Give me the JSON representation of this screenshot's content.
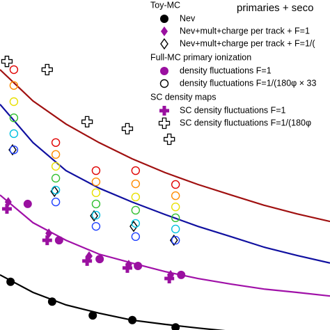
{
  "chart_data": {
    "type": "scatter",
    "title": "primaries + seco",
    "xlim": [
      0,
      100
    ],
    "ylim": [
      0,
      100
    ],
    "legend_groups": [
      {
        "title": "Toy-MC",
        "start": 0
      },
      {
        "title": "Full-MC primary ionization",
        "start": 3
      },
      {
        "title": "SC density maps",
        "start": 5
      }
    ],
    "series": [
      {
        "name": "Nev",
        "marker": "circle",
        "filled": true,
        "color": "#000000",
        "x": [
          3.2,
          15.8,
          28.1,
          40.1,
          53.2
        ],
        "values": [
          14.6,
          8.6,
          4.4,
          3.0,
          0.8
        ]
      },
      {
        "name": "Nev+mult+charge per track + F=1",
        "marker": "diamond",
        "filled": true,
        "color": "#9a10a0",
        "x": [
          2.5,
          14.8,
          27.0,
          39.0,
          51.7
        ],
        "values": [
          38.8,
          29.3,
          22.4,
          19.8,
          16.7
        ]
      },
      {
        "name": "Nev+mult+charge per track + F=1/(",
        "marker": "diamond",
        "filled": false,
        "color": "#000000",
        "x": [
          3.8,
          16.5,
          28.5,
          40.5,
          52.7
        ],
        "values": [
          54.6,
          42.0,
          34.6,
          31.4,
          27.2
        ]
      },
      {
        "name": "density fluctuations F=1",
        "marker": "circle",
        "filled": true,
        "color": "#9a10a0",
        "x": [
          8.4,
          17.9,
          30.2,
          41.8,
          54.9
        ],
        "values": [
          38.2,
          27.2,
          21.5,
          19.4,
          16.7
        ]
      },
      {
        "name": "density fluctuations F=1/(180φ × 33",
        "marker": "circle",
        "filled": false,
        "color": "#000000",
        "x": [
          4.2,
          4.2,
          4.2,
          4.2,
          4.2,
          4.2,
          16.9,
          16.9,
          16.9,
          16.9,
          16.9,
          16.9,
          29.1,
          29.1,
          29.1,
          29.1,
          29.1,
          29.1,
          41.1,
          41.1,
          41.1,
          41.1,
          41.1,
          41.1,
          53.2,
          53.2,
          53.2,
          53.2,
          53.2,
          53.2
        ],
        "values": [
          78.9,
          74.1,
          69.2,
          64.3,
          59.5,
          54.6,
          56.8,
          53.2,
          49.6,
          46.0,
          42.4,
          38.8,
          48.3,
          44.9,
          41.6,
          38.2,
          34.8,
          31.4,
          48.3,
          44.3,
          40.3,
          36.3,
          32.3,
          28.3,
          44.1,
          40.7,
          37.3,
          34.0,
          30.6,
          27.2
        ],
        "point_colors": [
          "#e00000",
          "#ff8c00",
          "#e8e000",
          "#30c030",
          "#00c0e0",
          "#2040ff"
        ]
      },
      {
        "name": "SC density fluctuations F=1",
        "marker": "plus",
        "filled": true,
        "color": "#9a10a0",
        "x": [
          2.1,
          14.3,
          26.4,
          38.6,
          51.3
        ],
        "values": [
          36.7,
          27.2,
          20.9,
          18.8,
          15.6
        ]
      },
      {
        "name": "SC density fluctuations F=1/(180φ",
        "marker": "plus",
        "filled": false,
        "color": "#000000",
        "x": [
          2.1,
          14.3,
          26.4,
          38.6,
          51.3
        ],
        "values": [
          81.4,
          78.9,
          63.1,
          61.0,
          57.8
        ]
      }
    ],
    "fits": [
      {
        "color": "#a01010",
        "x": [
          0,
          10,
          20,
          30,
          40,
          50,
          60,
          70,
          80,
          90,
          100
        ],
        "values": [
          78.9,
          69.4,
          62.4,
          56.8,
          51.9,
          47.7,
          44.1,
          40.9,
          37.8,
          35.2,
          32.9
        ]
      },
      {
        "color": "#1010a0",
        "x": [
          0,
          10,
          20,
          30,
          40,
          50,
          60,
          70,
          80,
          90,
          100
        ],
        "values": [
          68.4,
          56.8,
          48.3,
          43.0,
          38.8,
          35.0,
          31.4,
          28.3,
          25.1,
          22.6,
          20.3
        ]
      },
      {
        "color": "#a010a8",
        "x": [
          0,
          10,
          20,
          30,
          40,
          50,
          60,
          70,
          80,
          90,
          100
        ],
        "values": [
          40.9,
          32.5,
          27.2,
          23.0,
          20.3,
          17.7,
          15.6,
          13.9,
          12.4,
          11.4,
          10.3
        ]
      },
      {
        "color": "#000000",
        "x": [
          0,
          10,
          20,
          30,
          40,
          50,
          60,
          70,
          80,
          90,
          100
        ],
        "values": [
          16.7,
          11.4,
          7.6,
          5.1,
          3.0,
          1.7,
          0.6,
          -0.4,
          -1.3,
          -2.1,
          -2.7
        ]
      }
    ]
  }
}
